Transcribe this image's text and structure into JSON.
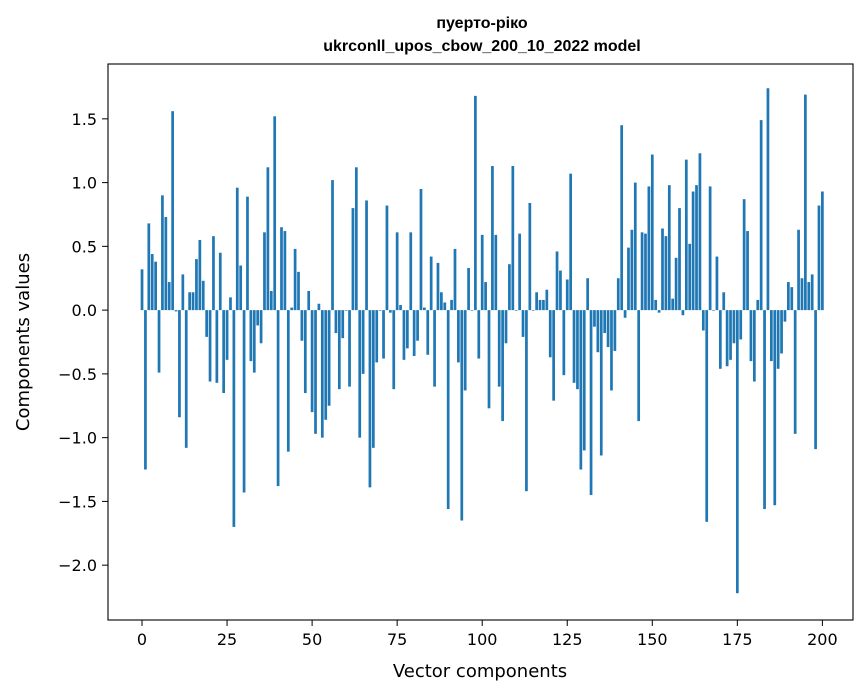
{
  "chart_data": {
    "type": "bar",
    "title": "пуерто-ріко",
    "subtitle": "ukrconll_upos_cbow_200_10_2022 model",
    "xlabel": "Vector components",
    "ylabel": "Components values",
    "xlim": [
      -10,
      209
    ],
    "ylim": [
      -2.43,
      1.93
    ],
    "xticks": [
      0,
      25,
      50,
      75,
      100,
      125,
      150,
      175,
      200
    ],
    "yticks": [
      -2.0,
      -1.5,
      -1.0,
      -0.5,
      0.0,
      0.5,
      1.0,
      1.5
    ],
    "ytick_labels": [
      "−2.0",
      "−1.5",
      "−1.0",
      "−0.5",
      "0.0",
      "0.5",
      "1.0",
      "1.5"
    ],
    "bar_color": "#1f77b4",
    "grid": false,
    "legend": "none",
    "values": [
      0.32,
      -1.25,
      0.68,
      0.44,
      0.38,
      -0.49,
      0.9,
      0.73,
      0.22,
      1.56,
      -0.01,
      -0.84,
      0.28,
      -1.08,
      0.14,
      0.14,
      0.4,
      0.55,
      0.23,
      -0.21,
      -0.56,
      0.58,
      -0.57,
      0.45,
      -0.65,
      -0.39,
      0.1,
      -1.7,
      0.96,
      0.35,
      -1.43,
      0.89,
      -0.4,
      -0.49,
      -0.12,
      -0.26,
      0.61,
      1.12,
      0.15,
      1.52,
      -1.38,
      0.65,
      0.62,
      -1.11,
      0.02,
      0.48,
      0.3,
      -0.24,
      -0.65,
      0.15,
      -0.8,
      -0.97,
      0.05,
      -1.0,
      -0.86,
      -0.75,
      1.02,
      -0.18,
      -0.62,
      -0.22,
      0.0,
      -0.6,
      0.8,
      1.12,
      -1.0,
      -0.5,
      0.86,
      -1.39,
      -1.08,
      -0.41,
      0.0,
      -0.38,
      0.82,
      -0.02,
      -0.62,
      0.61,
      0.04,
      -0.39,
      -0.3,
      0.61,
      -0.36,
      -0.24,
      0.95,
      0.02,
      -0.35,
      0.42,
      -0.6,
      0.37,
      0.14,
      0.06,
      -1.56,
      0.08,
      0.48,
      -0.41,
      -1.65,
      -0.63,
      0.33,
      0.0,
      1.68,
      -0.38,
      0.59,
      0.22,
      -0.77,
      1.13,
      0.59,
      -0.6,
      -0.87,
      -0.26,
      0.36,
      1.13,
      0.0,
      0.6,
      -0.21,
      -1.42,
      0.84,
      0.0,
      0.14,
      0.08,
      0.08,
      0.16,
      -0.37,
      -0.71,
      0.46,
      0.31,
      -0.51,
      0.24,
      1.07,
      -0.57,
      -0.62,
      -1.25,
      -1.1,
      0.25,
      -1.45,
      -0.13,
      -0.33,
      -1.14,
      -0.18,
      -0.29,
      -0.63,
      -0.32,
      0.25,
      1.45,
      -0.06,
      0.49,
      0.63,
      1.0,
      -0.87,
      0.61,
      0.6,
      0.97,
      1.22,
      0.08,
      -0.02,
      0.64,
      0.58,
      0.98,
      0.09,
      0.41,
      0.8,
      -0.04,
      1.18,
      0.52,
      0.93,
      0.98,
      1.23,
      -0.16,
      -1.66,
      0.97,
      0.0,
      0.42,
      -0.46,
      0.14,
      -0.44,
      -0.39,
      -0.26,
      -2.22,
      -0.23,
      0.87,
      0.62,
      -0.4,
      -0.56,
      0.08,
      1.49,
      -1.56,
      1.74,
      -0.4,
      -1.53,
      -0.46,
      -0.34,
      -0.09,
      0.22,
      0.18,
      -0.97,
      0.63,
      0.25,
      1.69,
      0.22,
      0.28,
      -1.09,
      0.82,
      0.93
    ]
  }
}
